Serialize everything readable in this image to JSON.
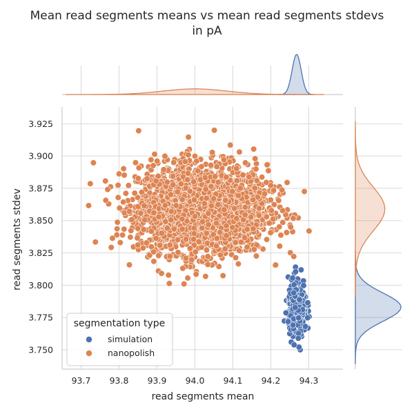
{
  "chart_data": {
    "type": "scatter",
    "title_line1": "Mean read segments means vs mean read segments stdevs",
    "title_line2": "in pA",
    "xlabel": "read segments mean",
    "ylabel": "read segments stdev",
    "xlim": [
      93.65,
      94.39
    ],
    "ylim": [
      3.735,
      3.938
    ],
    "xticks": [
      "93.7",
      "93.8",
      "93.9",
      "94.0",
      "94.1",
      "94.2",
      "94.3"
    ],
    "yticks": [
      "3.750",
      "3.775",
      "3.800",
      "3.825",
      "3.850",
      "3.875",
      "3.900",
      "3.925"
    ],
    "grid": true,
    "legend": {
      "title": "segmentation type",
      "placement": "lower-left",
      "entries": [
        "simulation",
        "nanopolish"
      ]
    },
    "series": [
      {
        "name": "simulation",
        "color": "#4c72b0",
        "center": [
          94.27,
          3.782
        ],
        "spread": [
          0.012,
          0.011
        ],
        "n_points": 380,
        "x_range": [
          94.23,
          94.31
        ],
        "y_range": [
          3.75,
          3.814
        ],
        "marginal_x_peak": 94.268,
        "marginal_y_peak": 3.783
      },
      {
        "name": "nanopolish",
        "color": "#dd8452",
        "center": [
          94.02,
          3.859
        ],
        "spread": [
          0.085,
          0.017
        ],
        "n_points": 2600,
        "x_range": [
          93.72,
          94.32
        ],
        "y_range": [
          3.801,
          3.921
        ],
        "marginal_x_peak": 94.0,
        "marginal_y_peak": 3.859
      }
    ],
    "marginals": {
      "top": "kde of read segments mean per segmentation type",
      "right": "kde of read segments stdev per segmentation type"
    }
  }
}
